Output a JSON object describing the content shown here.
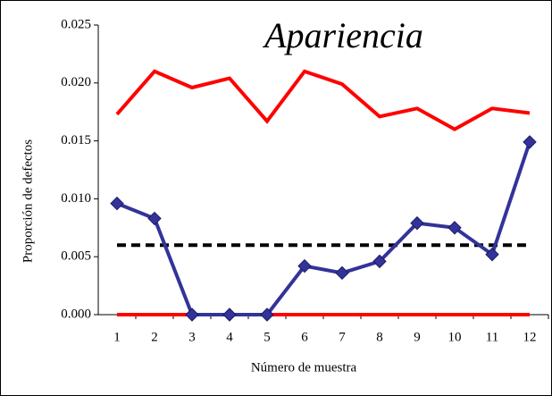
{
  "chart_data": {
    "type": "line",
    "title": "Apariencia",
    "x_label": "Número de muestra",
    "y_label": "Proporción de defectos",
    "categories": [
      "1",
      "2",
      "3",
      "4",
      "5",
      "6",
      "7",
      "8",
      "9",
      "10",
      "11",
      "12"
    ],
    "series": [
      {
        "color": "#ff0000",
        "style": "solid",
        "marker": "none",
        "values": [
          0.0173,
          0.021,
          0.0196,
          0.0204,
          0.0167,
          0.021,
          0.0199,
          0.0171,
          0.0178,
          0.016,
          0.0178,
          0.0174
        ]
      },
      {
        "color": "#ff0000",
        "style": "solid",
        "marker": "none",
        "values": [
          0,
          0,
          0,
          0,
          0,
          0,
          0,
          0,
          0,
          0,
          0,
          0
        ]
      },
      {
        "color": "#000000",
        "style": "dashed",
        "marker": "none",
        "values": [
          0.006,
          0.006,
          0.006,
          0.006,
          0.006,
          0.006,
          0.006,
          0.006,
          0.006,
          0.006,
          0.006,
          0.006
        ]
      },
      {
        "color": "#333399",
        "style": "solid",
        "marker": "diamond",
        "values": [
          0.0096,
          0.0083,
          0,
          0,
          0,
          0.0042,
          0.0036,
          0.0046,
          0.0079,
          0.0075,
          0.0052,
          0.0149
        ]
      }
    ],
    "ylim": [
      0,
      0.025
    ],
    "yticks": [
      {
        "value": 0,
        "label": "0.000"
      },
      0.005,
      {
        "value": 0.01,
        "label": "0.010"
      },
      0.015,
      {
        "value": 0.02,
        "label": "0.020"
      },
      0.025
    ]
  }
}
